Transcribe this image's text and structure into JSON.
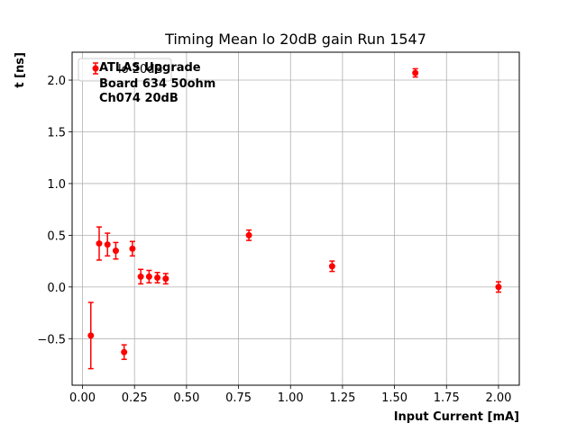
{
  "chart_data": {
    "type": "scatter",
    "title": "Timing Mean lo 20dB gain Run 1547",
    "xlabel": "Input Current [mA]",
    "ylabel": "t [ns]",
    "xlim": [
      -0.05,
      2.1
    ],
    "ylim": [
      -0.95,
      2.27
    ],
    "xticks": [
      0.0,
      0.25,
      0.5,
      0.75,
      1.0,
      1.25,
      1.5,
      1.75,
      2.0
    ],
    "xtick_labels": [
      "0.00",
      "0.25",
      "0.50",
      "0.75",
      "1.00",
      "1.25",
      "1.50",
      "1.75",
      "2.00"
    ],
    "yticks": [
      -0.5,
      0.0,
      0.5,
      1.0,
      1.5,
      2.0
    ],
    "ytick_labels": [
      "−0.5",
      "0.0",
      "0.5",
      "1.0",
      "1.5",
      "2.0"
    ],
    "grid": true,
    "legend_position": "top-left",
    "annotation": [
      "ATLAS Upgrade",
      "Board 634 50ohm",
      "Ch074 20dB"
    ],
    "series": [
      {
        "name": "lo 20dB",
        "color": "#ff0000",
        "points": [
          {
            "x": 0.04,
            "y": -0.47,
            "err": 0.32
          },
          {
            "x": 0.08,
            "y": 0.42,
            "err": 0.16
          },
          {
            "x": 0.12,
            "y": 0.41,
            "err": 0.11
          },
          {
            "x": 0.16,
            "y": 0.35,
            "err": 0.08
          },
          {
            "x": 0.2,
            "y": -0.63,
            "err": 0.07
          },
          {
            "x": 0.24,
            "y": 0.37,
            "err": 0.07
          },
          {
            "x": 0.28,
            "y": 0.1,
            "err": 0.07
          },
          {
            "x": 0.32,
            "y": 0.1,
            "err": 0.06
          },
          {
            "x": 0.36,
            "y": 0.09,
            "err": 0.05
          },
          {
            "x": 0.4,
            "y": 0.08,
            "err": 0.05
          },
          {
            "x": 0.8,
            "y": 0.5,
            "err": 0.05
          },
          {
            "x": 1.2,
            "y": 0.2,
            "err": 0.05
          },
          {
            "x": 1.6,
            "y": 2.07,
            "err": 0.04
          },
          {
            "x": 2.0,
            "y": 0.0,
            "err": 0.05
          }
        ]
      }
    ]
  }
}
